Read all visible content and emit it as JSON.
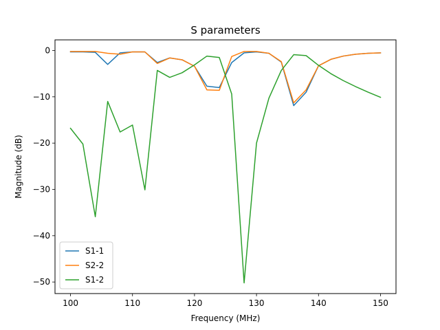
{
  "chart_data": {
    "type": "line",
    "title": "S parameters",
    "xlabel": "Frequency (MHz)",
    "ylabel": "Magnitude (dB)",
    "xlim": [
      97.5,
      152.5
    ],
    "ylim": [
      -52.5,
      2.3
    ],
    "xticks": [
      100,
      110,
      120,
      130,
      140,
      150
    ],
    "yticks": [
      0,
      -10,
      -20,
      -30,
      -40,
      -50
    ],
    "xtick_labels": [
      "100",
      "110",
      "120",
      "130",
      "140",
      "150"
    ],
    "ytick_labels": [
      "0",
      "−10",
      "−20",
      "−30",
      "−40",
      "−50"
    ],
    "grid": false,
    "legend_position": "lower-left",
    "x": [
      100,
      102,
      104,
      106,
      108,
      110,
      112,
      114,
      116,
      118,
      120,
      122,
      124,
      126,
      128,
      130,
      132,
      134,
      136,
      138,
      140,
      142,
      144,
      146,
      148,
      150
    ],
    "series": [
      {
        "name": "S1-1",
        "color": "#1f77b4",
        "values": [
          -0.3,
          -0.3,
          -0.4,
          -3.0,
          -0.5,
          -0.3,
          -0.3,
          -2.6,
          -1.6,
          -2.0,
          -3.4,
          -7.7,
          -8.0,
          -2.6,
          -0.5,
          -0.3,
          -0.6,
          -2.5,
          -11.9,
          -9.0,
          -3.3,
          -1.9,
          -1.2,
          -0.8,
          -0.6,
          -0.5
        ]
      },
      {
        "name": "S2-2",
        "color": "#ff7f0e",
        "values": [
          -0.2,
          -0.2,
          -0.2,
          -0.6,
          -0.8,
          -0.3,
          -0.3,
          -2.8,
          -1.6,
          -2.0,
          -3.4,
          -8.5,
          -8.6,
          -1.3,
          -0.2,
          -0.2,
          -0.6,
          -2.4,
          -11.3,
          -8.5,
          -3.3,
          -1.9,
          -1.2,
          -0.8,
          -0.6,
          -0.5
        ]
      },
      {
        "name": "S1-2",
        "color": "#2ca02c",
        "values": [
          -16.8,
          -20.2,
          -35.9,
          -11.0,
          -17.6,
          -16.1,
          -30.1,
          -4.3,
          -5.8,
          -4.8,
          -3.1,
          -1.2,
          -1.5,
          -9.4,
          -50.2,
          -20.0,
          -10.3,
          -4.3,
          -0.9,
          -1.1,
          -3.2,
          -5.0,
          -6.5,
          -7.8,
          -9.0,
          -10.1
        ]
      }
    ]
  }
}
